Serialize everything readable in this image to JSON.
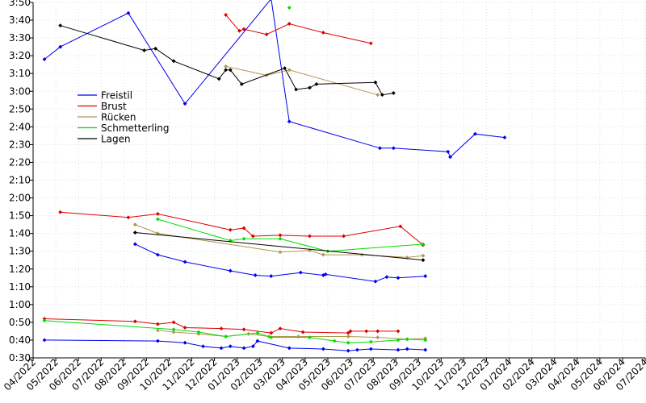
{
  "chart_data": {
    "type": "line",
    "title": "",
    "xlabel": "",
    "ylabel": "",
    "y_unit": "minutes:seconds",
    "y_ticks": [
      "0:30",
      "0:40",
      "0:50",
      "1:00",
      "1:10",
      "1:20",
      "1:30",
      "1:40",
      "1:50",
      "2:00",
      "2:10",
      "2:20",
      "2:30",
      "2:40",
      "2:50",
      "3:00",
      "3:10",
      "3:20",
      "3:30",
      "3:40",
      "3:50"
    ],
    "ylim_seconds": [
      30,
      230
    ],
    "x_ticks": [
      "04/2022",
      "05/2022",
      "06/2022",
      "07/2022",
      "08/2022",
      "09/2022",
      "10/2022",
      "11/2022",
      "12/2022",
      "01/2023",
      "02/2023",
      "03/2023",
      "04/2023",
      "05/2023",
      "06/2023",
      "07/2023",
      "08/2023",
      "09/2023",
      "10/2023",
      "11/2023",
      "12/2023",
      "01/2024",
      "02/2024",
      "03/2024",
      "04/2024",
      "05/2024",
      "06/2024",
      "07/2024"
    ],
    "xlim_months": [
      0,
      27
    ],
    "x_unit": "months since 04/2022",
    "legend": {
      "position": "upper-left",
      "entries": [
        "Freistil",
        "Brust",
        "Rücken",
        "Schmetterling",
        "Lagen"
      ]
    },
    "colors": {
      "Freistil": "#0000ee",
      "Brust": "#dd0000",
      "Rücken": "#b09850",
      "Schmetterling": "#00dd00",
      "Lagen": "#000000"
    },
    "series": [
      {
        "name": "Freistil",
        "distance": "200m",
        "points": [
          [
            0.5,
            198
          ],
          [
            1.2,
            205
          ],
          [
            4.2,
            224
          ],
          [
            6.7,
            173
          ],
          [
            10.5,
            232
          ],
          [
            11.3,
            163
          ],
          [
            15.3,
            148
          ],
          [
            15.9,
            148
          ],
          [
            18.3,
            146
          ],
          [
            18.4,
            143
          ],
          [
            19.5,
            156
          ],
          [
            20.8,
            154
          ]
        ]
      },
      {
        "name": "Brust",
        "distance": "200m",
        "points": [
          [
            8.5,
            223
          ],
          [
            9.1,
            214
          ],
          [
            9.3,
            215
          ],
          [
            10.3,
            212
          ],
          [
            11.3,
            218
          ],
          [
            12.8,
            213
          ],
          [
            14.9,
            207
          ]
        ]
      },
      {
        "name": "Rücken",
        "distance": "200m",
        "points": [
          [
            8.5,
            194
          ],
          [
            10.3,
            189
          ],
          [
            11.3,
            192
          ],
          [
            15.2,
            178
          ]
        ]
      },
      {
        "name": "Schmetterling",
        "distance": "200m",
        "points": [
          [
            11.3,
            227
          ]
        ]
      },
      {
        "name": "Lagen",
        "distance": "200m",
        "points": [
          [
            1.2,
            217
          ],
          [
            4.9,
            203
          ],
          [
            5.4,
            204
          ],
          [
            6.2,
            197
          ],
          [
            8.2,
            187
          ],
          [
            8.5,
            192
          ],
          [
            8.7,
            192
          ],
          [
            9.2,
            184
          ],
          [
            11.1,
            193
          ],
          [
            11.6,
            181
          ],
          [
            12.2,
            182
          ],
          [
            12.5,
            184
          ],
          [
            15.1,
            185
          ],
          [
            15.4,
            178
          ],
          [
            15.9,
            179
          ]
        ]
      },
      {
        "name": "Freistil",
        "distance": "100m",
        "points": [
          [
            4.5,
            94
          ],
          [
            5.5,
            88
          ],
          [
            6.7,
            84
          ],
          [
            8.7,
            79
          ],
          [
            9.8,
            76.5
          ],
          [
            10.5,
            76
          ],
          [
            11.8,
            78
          ],
          [
            12.8,
            76.5
          ],
          [
            12.9,
            77
          ],
          [
            15.1,
            73
          ],
          [
            15.6,
            75.5
          ],
          [
            16.1,
            75
          ],
          [
            17.3,
            76
          ]
        ]
      },
      {
        "name": "Brust",
        "distance": "100m",
        "points": [
          [
            1.2,
            112
          ],
          [
            4.2,
            109
          ],
          [
            5.5,
            111
          ],
          [
            8.7,
            102
          ],
          [
            9.3,
            103
          ],
          [
            9.7,
            98.5
          ],
          [
            10.9,
            99
          ],
          [
            12.2,
            98.5
          ],
          [
            13.7,
            98.5
          ],
          [
            16.2,
            104
          ],
          [
            17.2,
            93.5
          ]
        ]
      },
      {
        "name": "Rücken",
        "distance": "100m",
        "points": [
          [
            4.5,
            105
          ],
          [
            5.5,
            100
          ],
          [
            10.9,
            89.5
          ],
          [
            12.2,
            90.5
          ],
          [
            12.8,
            88
          ],
          [
            14.5,
            88
          ],
          [
            16.5,
            86.5
          ],
          [
            17.2,
            87.5
          ]
        ]
      },
      {
        "name": "Schmetterling",
        "distance": "100m",
        "points": [
          [
            5.5,
            108
          ],
          [
            8.7,
            96
          ],
          [
            9.3,
            97
          ],
          [
            10.9,
            97
          ],
          [
            13.0,
            90
          ],
          [
            17.2,
            94
          ]
        ]
      },
      {
        "name": "Lagen",
        "distance": "100m",
        "points": [
          [
            4.5,
            100.5
          ],
          [
            17.2,
            85
          ]
        ]
      },
      {
        "name": "Freistil",
        "distance": "50m",
        "points": [
          [
            0.5,
            40
          ],
          [
            5.5,
            39.5
          ],
          [
            6.7,
            38.5
          ],
          [
            7.5,
            36.5
          ],
          [
            8.3,
            35.5
          ],
          [
            8.7,
            36.5
          ],
          [
            9.3,
            35.5
          ],
          [
            9.7,
            36.5
          ],
          [
            9.9,
            39.5
          ],
          [
            11.3,
            35.5
          ],
          [
            12.8,
            35
          ],
          [
            13.9,
            34
          ],
          [
            14.3,
            34.5
          ],
          [
            14.9,
            35
          ],
          [
            16.1,
            34.5
          ],
          [
            16.5,
            35
          ],
          [
            17.3,
            34.5
          ]
        ]
      },
      {
        "name": "Brust",
        "distance": "50m",
        "points": [
          [
            0.5,
            52
          ],
          [
            4.5,
            50.5
          ],
          [
            5.5,
            49
          ],
          [
            6.2,
            50
          ],
          [
            6.7,
            47
          ],
          [
            8.3,
            46.5
          ],
          [
            9.3,
            46
          ],
          [
            10.5,
            44
          ],
          [
            10.9,
            46.5
          ],
          [
            11.9,
            44.5
          ],
          [
            13.9,
            44
          ],
          [
            14.0,
            45
          ],
          [
            14.7,
            45
          ],
          [
            15.2,
            45
          ],
          [
            16.1,
            45
          ]
        ]
      },
      {
        "name": "Rücken",
        "distance": "50m",
        "points": [
          [
            5.5,
            45.5
          ],
          [
            6.2,
            44.5
          ],
          [
            7.3,
            43.5
          ],
          [
            8.5,
            42
          ],
          [
            9.5,
            43.5
          ],
          [
            10.4,
            42
          ],
          [
            11.7,
            42
          ],
          [
            13.9,
            42
          ],
          [
            15.2,
            41.5
          ],
          [
            16.5,
            40.5
          ],
          [
            17.3,
            41
          ]
        ]
      },
      {
        "name": "Schmetterling",
        "distance": "50m",
        "points": [
          [
            0.5,
            51
          ],
          [
            6.2,
            46
          ],
          [
            7.3,
            44.5
          ],
          [
            8.5,
            42
          ],
          [
            9.9,
            44
          ],
          [
            10.5,
            41.5
          ],
          [
            12.2,
            41.5
          ],
          [
            13.3,
            39.5
          ],
          [
            13.9,
            38.5
          ],
          [
            14.9,
            39
          ],
          [
            16.1,
            40
          ],
          [
            16.5,
            40.5
          ],
          [
            17.3,
            40
          ]
        ]
      }
    ]
  }
}
